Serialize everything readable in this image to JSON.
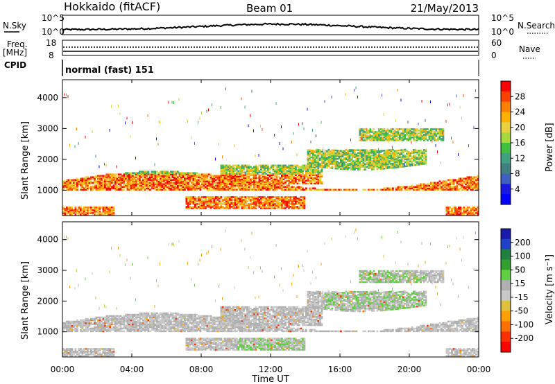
{
  "chart_data": {
    "type": "heatmap",
    "header": {
      "station": "Hokkaido (fitACF)",
      "beam": "Beam 01",
      "date": "21/May/2013"
    },
    "time_axis": {
      "xlabel": "Time UT",
      "tick_labels": [
        "00:00",
        "04:00",
        "08:00",
        "12:00",
        "16:00",
        "20:00",
        "00:00"
      ],
      "range_hours": [
        0,
        24
      ]
    },
    "noise_panel": {
      "left_label": "N.Sky",
      "right_label": "N.Search",
      "left_ticks": [
        "10^5",
        "10^0"
      ],
      "right_ticks": [
        "10^5",
        "10^0"
      ]
    },
    "freq_panel": {
      "left_label_1": "Freq.",
      "left_label_2": "[MHz]",
      "right_label": "Nave",
      "left_ticks": [
        "18",
        "8"
      ],
      "right_ticks": [
        "60",
        "0"
      ],
      "freq_mhz": 10.3,
      "nave": 44
    },
    "cpid_panel": {
      "label": "CPID",
      "mode_text": "normal (fast) 151"
    },
    "power_panel": {
      "ylabel": "Slant Range [km]",
      "ylim": [
        180,
        4580
      ],
      "yticks": [
        1000,
        2000,
        3000,
        4000
      ],
      "colorbar_label": "Power [dB]",
      "colorbar_ticks": [
        "28",
        "24",
        "20",
        "16",
        "12",
        "8",
        "4"
      ],
      "colorbar_colors": [
        "#ff0000",
        "#ff4000",
        "#ff8000",
        "#ffb000",
        "#e8d040",
        "#a8d840",
        "#40c040",
        "#40a080",
        "#408080",
        "#4060c0",
        "#1818e0",
        "#0000ff"
      ]
    },
    "velocity_panel": {
      "ylabel": "Slant Range [km]",
      "ylim": [
        180,
        4580
      ],
      "yticks": [
        1000,
        2000,
        3000,
        4000
      ],
      "colorbar_label": "Velocity [m s⁻¹]",
      "colorbar_ticks": [
        "200",
        "100",
        "50",
        "15",
        "-15",
        "-50",
        "-100",
        "-200"
      ],
      "colorbar_colors": [
        "#1a1aa8",
        "#2040c8",
        "#208040",
        "#30a030",
        "#60d040",
        "#b0b0b0",
        "#c8c8c8",
        "#e0c040",
        "#ffa000",
        "#ff7000",
        "#ff3000",
        "#ff0000"
      ]
    }
  }
}
